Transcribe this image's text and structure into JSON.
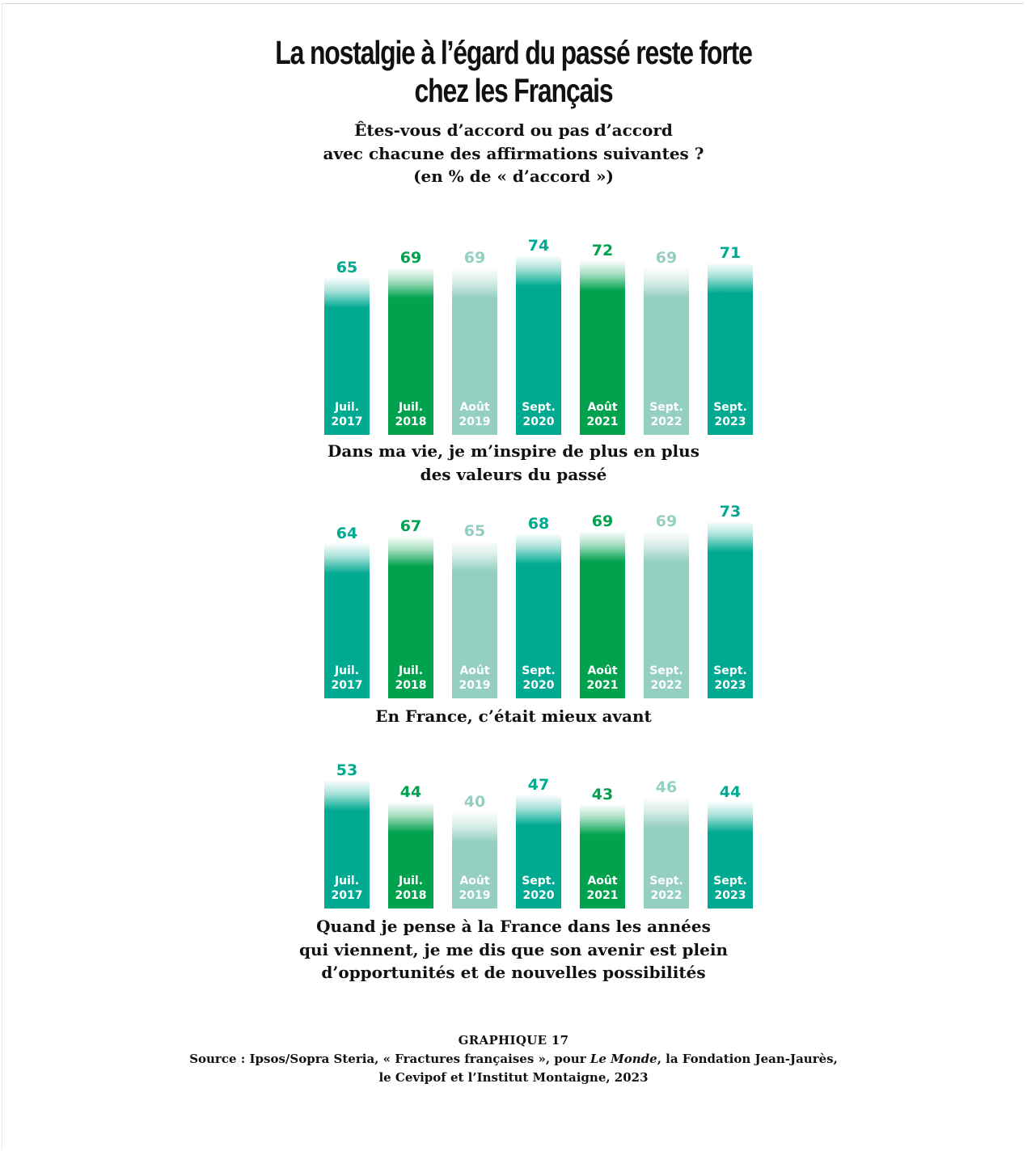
{
  "title_lines": [
    "La nostalgie à l’égard du passé reste forte",
    "chez les Français"
  ],
  "subtitle_lines": [
    "Êtes-vous d’accord ou pas d’accord",
    "avec chacune des affirmations suivantes ?",
    "(en % de « d’accord »)"
  ],
  "colors": {
    "teal": "#00a991",
    "green": "#00a24d",
    "light_teal": "#94cfc1"
  },
  "chart_data": [
    {
      "type": "bar",
      "categories": [
        "Juil. 2017",
        "Juil. 2018",
        "Août 2019",
        "Sept. 2020",
        "Août 2021",
        "Sept. 2022",
        "Sept. 2023"
      ],
      "category_lines": [
        [
          "Juil.",
          "2017"
        ],
        [
          "Juil.",
          "2018"
        ],
        [
          "Août",
          "2019"
        ],
        [
          "Sept.",
          "2020"
        ],
        [
          "Août",
          "2021"
        ],
        [
          "Sept.",
          "2022"
        ],
        [
          "Sept.",
          "2023"
        ]
      ],
      "values": [
        65,
        69,
        69,
        74,
        72,
        69,
        71
      ],
      "bar_colors": [
        "#00a991",
        "#00a24d",
        "#94cfc1",
        "#00a991",
        "#00a24d",
        "#94cfc1",
        "#00a991"
      ],
      "caption_lines": [
        "Dans ma vie, je m’inspire de plus en plus",
        "des valeurs du passé"
      ]
    },
    {
      "type": "bar",
      "categories": [
        "Juil. 2017",
        "Juil. 2018",
        "Août 2019",
        "Sept. 2020",
        "Août 2021",
        "Sept. 2022",
        "Sept. 2023"
      ],
      "category_lines": [
        [
          "Juil.",
          "2017"
        ],
        [
          "Juil.",
          "2018"
        ],
        [
          "Août",
          "2019"
        ],
        [
          "Sept.",
          "2020"
        ],
        [
          "Août",
          "2021"
        ],
        [
          "Sept.",
          "2022"
        ],
        [
          "Sept.",
          "2023"
        ]
      ],
      "values": [
        64,
        67,
        65,
        68,
        69,
        69,
        73
      ],
      "bar_colors": [
        "#00a991",
        "#00a24d",
        "#94cfc1",
        "#00a991",
        "#00a24d",
        "#94cfc1",
        "#00a991"
      ],
      "caption_lines": [
        "En France, c’était mieux avant"
      ]
    },
    {
      "type": "bar",
      "categories": [
        "Juil. 2017",
        "Juil. 2018",
        "Août 2019",
        "Sept. 2020",
        "Août 2021",
        "Sept. 2022",
        "Sept. 2023"
      ],
      "category_lines": [
        [
          "Juil.",
          "2017"
        ],
        [
          "Juil.",
          "2018"
        ],
        [
          "Août",
          "2019"
        ],
        [
          "Sept.",
          "2020"
        ],
        [
          "Août",
          "2021"
        ],
        [
          "Sept.",
          "2022"
        ],
        [
          "Sept.",
          "2023"
        ]
      ],
      "values": [
        53,
        44,
        40,
        47,
        43,
        46,
        44
      ],
      "bar_colors": [
        "#00a991",
        "#00a24d",
        "#94cfc1",
        "#00a991",
        "#00a24d",
        "#94cfc1",
        "#00a991"
      ],
      "caption_lines": [
        "Quand je pense à la France dans les années",
        "qui viennent, je me dis que son avenir est plein",
        "d’opportunités et de nouvelles possibilités"
      ]
    }
  ],
  "footer": {
    "graph_label": "GRAPHIQUE 17",
    "source_before": "Source : Ipsos/Sopra Steria, « Fractures françaises », pour ",
    "source_italic": "Le Monde",
    "source_after": ", la Fondation Jean-Jaurès,",
    "source_line2": "le Cevipof et l’Institut Montaigne, 2023"
  }
}
